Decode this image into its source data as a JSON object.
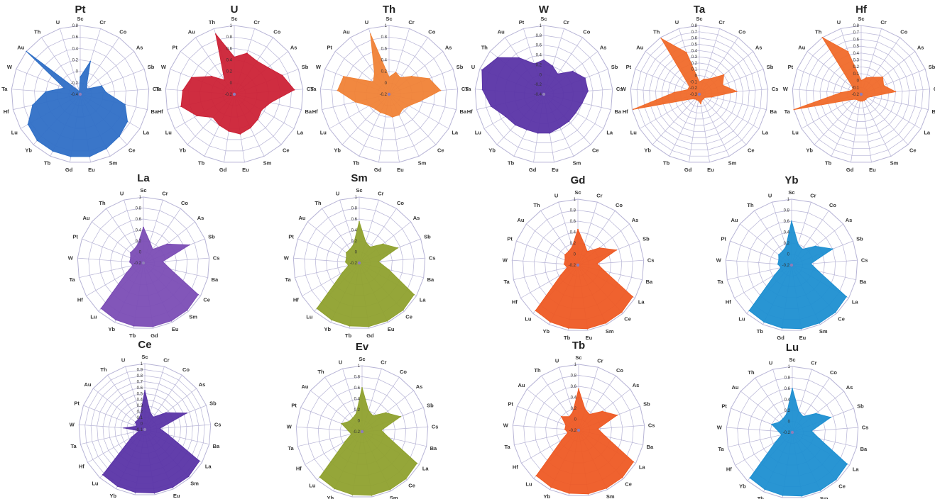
{
  "figure": {
    "title": ""
  },
  "chart_data": [
    {
      "type": "radar",
      "title": "Pt",
      "color": "#2f6fc6",
      "axis_ticks": [
        "0.8",
        "0.6",
        "0.4",
        "0.2",
        "0",
        "-0.2",
        "-0.4"
      ],
      "rmin": -0.4,
      "rmax": 0.8,
      "categories": [
        "Sc",
        "Cr",
        "Co",
        "As",
        "Sb",
        "Cs",
        "Ba",
        "La",
        "Ce",
        "Sm",
        "Eu",
        "Gd",
        "Tb",
        "Yb",
        "Lu",
        "Hf",
        "Ta",
        "W",
        "Au",
        "Th",
        "U"
      ],
      "values": [
        -0.1,
        0.2,
        -0.2,
        -0.25,
        0.0,
        0.05,
        0.4,
        0.55,
        0.6,
        0.65,
        0.7,
        0.7,
        0.7,
        0.7,
        0.65,
        0.45,
        0.2,
        -0.1,
        0.8,
        -0.3,
        -0.35
      ]
    },
    {
      "type": "radar",
      "title": "U",
      "color": "#cc2236",
      "axis_ticks": [
        "1",
        "0.8",
        "0.6",
        "0.4",
        "0.2",
        "0",
        "-0.2"
      ],
      "rmin": -0.2,
      "rmax": 1,
      "categories": [
        "Sc",
        "Cr",
        "Co",
        "As",
        "Sb",
        "Cs",
        "Ba",
        "La",
        "Ce",
        "Sm",
        "Eu",
        "Gd",
        "Tb",
        "Yb",
        "Lu",
        "Hf",
        "Ta",
        "W",
        "Pt",
        "Au",
        "Th"
      ],
      "values": [
        0.45,
        0.55,
        0.5,
        0.55,
        0.7,
        0.85,
        0.45,
        0.35,
        0.4,
        0.45,
        0.5,
        0.45,
        0.4,
        0.35,
        0.55,
        0.75,
        0.7,
        0.6,
        0.3,
        0.1,
        0.9
      ]
    },
    {
      "type": "radar",
      "title": "Th",
      "color": "#f08236",
      "axis_ticks": [
        "1",
        "0.8",
        "0.6",
        "0.4",
        "0.2",
        "0",
        "-0.2"
      ],
      "rmin": -0.2,
      "rmax": 1,
      "categories": [
        "Sc",
        "Cr",
        "Co",
        "As",
        "Sb",
        "Cs",
        "Ba",
        "La",
        "Ce",
        "Sm",
        "Eu",
        "Gd",
        "Tb",
        "Yb",
        "Lu",
        "Hf",
        "Ta",
        "W",
        "Pt",
        "Au",
        "U"
      ],
      "values": [
        0.1,
        0.2,
        0.15,
        0.3,
        0.55,
        0.7,
        0.35,
        0.2,
        0.15,
        0.2,
        0.2,
        0.15,
        0.15,
        0.15,
        0.2,
        0.4,
        0.7,
        0.65,
        0.15,
        0.25,
        0.9
      ]
    },
    {
      "type": "radar",
      "title": "W",
      "color": "#5a34a6",
      "axis_ticks": [
        "1",
        "0.8",
        "0.6",
        "0.4",
        "0.2",
        "0",
        "-0.2",
        "-0.4"
      ],
      "rmin": -0.4,
      "rmax": 1,
      "categories": [
        "Sc",
        "Cr",
        "Co",
        "As",
        "Sb",
        "Cs",
        "Ba",
        "La",
        "Ce",
        "Sm",
        "Eu",
        "Gd",
        "Tb",
        "Yb",
        "Lu",
        "Hf",
        "Ta",
        "U",
        "Th",
        "Au",
        "Pt"
      ],
      "values": [
        0.3,
        0.2,
        0.1,
        0.35,
        0.5,
        0.5,
        0.4,
        0.35,
        0.35,
        0.35,
        0.4,
        0.4,
        0.4,
        0.45,
        0.5,
        0.7,
        0.85,
        0.95,
        0.8,
        0.5,
        0.25
      ]
    },
    {
      "type": "radar",
      "title": "Ta",
      "color": "#f06a2a",
      "axis_ticks": [
        "0.8",
        "0.7",
        "0.6",
        "0.5",
        "0.4",
        "0.3",
        "0.2",
        "0.1",
        "0",
        "-0.1",
        "-0.2",
        "-0.3"
      ],
      "rmin": -0.3,
      "rmax": 0.8,
      "categories": [
        "Sc",
        "Cr",
        "Co",
        "As",
        "Sb",
        "Cs",
        "Ba",
        "La",
        "Ce",
        "Sm",
        "Eu",
        "Gd",
        "Tb",
        "Yb",
        "Lu",
        "Hf",
        "W",
        "Pt",
        "Au",
        "Th",
        "U"
      ],
      "values": [
        -0.1,
        -0.05,
        0.0,
        0.2,
        0.1,
        0.3,
        -0.1,
        -0.2,
        -0.2,
        -0.2,
        -0.15,
        -0.2,
        -0.2,
        -0.2,
        -0.15,
        0.78,
        0.1,
        -0.1,
        -0.1,
        0.78,
        0.4
      ]
    },
    {
      "type": "radar",
      "title": "Hf",
      "color": "#f06a2a",
      "axis_ticks": [
        "0.8",
        "0.7",
        "0.6",
        "0.5",
        "0.4",
        "0.3",
        "0.2",
        "0.1",
        "0",
        "-0.1",
        "-0.2"
      ],
      "rmin": -0.2,
      "rmax": 0.8,
      "categories": [
        "Sc",
        "Cr",
        "Co",
        "As",
        "Sb",
        "Cs",
        "Ba",
        "La",
        "Ce",
        "Sm",
        "Eu",
        "Gd",
        "Tb",
        "Yb",
        "Lu",
        "Ta",
        "W",
        "Pt",
        "Au",
        "Th",
        "U"
      ],
      "values": [
        0.0,
        0.05,
        0.1,
        0.2,
        0.15,
        0.3,
        -0.05,
        -0.1,
        -0.1,
        -0.1,
        -0.1,
        -0.1,
        -0.1,
        -0.1,
        -0.05,
        0.8,
        0.1,
        -0.05,
        -0.05,
        0.8,
        0.45
      ]
    },
    {
      "type": "radar",
      "title": "La",
      "color": "#7b4db5",
      "axis_ticks": [
        "1",
        "0.8",
        "0.6",
        "0.4",
        "0.2",
        "0",
        "-0.2"
      ],
      "rmin": -0.2,
      "rmax": 1,
      "categories": [
        "Sc",
        "Cr",
        "Co",
        "As",
        "Sb",
        "Cs",
        "Ba",
        "Ce",
        "Sm",
        "Eu",
        "Gd",
        "Tb",
        "Yb",
        "Lu",
        "Hf",
        "Ta",
        "W",
        "Pt",
        "Au",
        "Th",
        "U"
      ],
      "values": [
        0.45,
        0.2,
        0.1,
        0.35,
        0.7,
        0.15,
        0.3,
        0.95,
        0.97,
        0.97,
        0.97,
        0.96,
        0.95,
        0.93,
        0.15,
        0.0,
        0.05,
        0.05,
        0.1,
        0.1,
        0.15
      ]
    },
    {
      "type": "radar",
      "title": "Sm",
      "color": "#8fa12e",
      "axis_ticks": [
        "1",
        "0.8",
        "0.6",
        "0.4",
        "0.2",
        "0",
        "-0.2"
      ],
      "rmin": -0.2,
      "rmax": 1,
      "categories": [
        "Sc",
        "Cr",
        "Co",
        "As",
        "Sb",
        "Cs",
        "Ba",
        "La",
        "Ce",
        "Eu",
        "Gd",
        "Tb",
        "Yb",
        "Lu",
        "Hf",
        "Ta",
        "W",
        "Pt",
        "Au",
        "Th",
        "U"
      ],
      "values": [
        0.55,
        0.2,
        0.15,
        0.35,
        0.55,
        0.15,
        0.35,
        0.95,
        0.97,
        0.97,
        0.97,
        0.96,
        0.95,
        0.93,
        0.15,
        0.0,
        0.05,
        0.05,
        0.1,
        0.1,
        0.15
      ]
    },
    {
      "type": "radar",
      "title": "Gd",
      "color": "#ee5a24",
      "axis_ticks": [
        "1",
        "0.8",
        "0.6",
        "0.4",
        "0.2",
        "0",
        "-0.2"
      ],
      "rmin": -0.2,
      "rmax": 1,
      "categories": [
        "Sc",
        "Cr",
        "Co",
        "As",
        "Sb",
        "Cs",
        "Ba",
        "La",
        "Ce",
        "Sm",
        "Eu",
        "Tb",
        "Yb",
        "Lu",
        "Hf",
        "Ta",
        "W",
        "Pt",
        "Au",
        "Th",
        "U"
      ],
      "values": [
        0.45,
        0.2,
        0.1,
        0.3,
        0.55,
        0.15,
        0.3,
        0.95,
        0.97,
        0.97,
        0.97,
        0.96,
        0.95,
        0.93,
        0.15,
        0.0,
        0.05,
        0.05,
        0.1,
        0.1,
        0.15
      ]
    },
    {
      "type": "radar",
      "title": "Yb",
      "color": "#1d8fd1",
      "axis_ticks": [
        "1",
        "0.8",
        "0.6",
        "0.4",
        "0.2",
        "0",
        "-0.2"
      ],
      "rmin": -0.2,
      "rmax": 1,
      "categories": [
        "Sc",
        "Cr",
        "Co",
        "As",
        "Sb",
        "Cs",
        "Ba",
        "La",
        "Ce",
        "Sm",
        "Eu",
        "Gd",
        "Tb",
        "Lu",
        "Hf",
        "Ta",
        "W",
        "Pt",
        "Au",
        "Th",
        "U"
      ],
      "values": [
        0.6,
        0.2,
        0.15,
        0.35,
        0.6,
        0.15,
        0.3,
        0.95,
        0.97,
        0.97,
        0.97,
        0.96,
        0.95,
        0.93,
        0.15,
        0.0,
        0.05,
        0.05,
        0.1,
        0.1,
        0.15
      ]
    },
    {
      "type": "radar",
      "title": "Ce",
      "color": "#5a34a6",
      "axis_ticks": [
        "1",
        "0.9",
        "0.8",
        "0.7",
        "0.6",
        "0.5",
        "0.4",
        "0.3",
        "0.2",
        "0.1",
        "0",
        "-0.1"
      ],
      "rmin": -0.1,
      "rmax": 1,
      "categories": [
        "Sc",
        "Cr",
        "Co",
        "As",
        "Sb",
        "Cs",
        "Ba",
        "La",
        "Sm",
        "Eu",
        "Gd",
        "Tb",
        "Yb",
        "Lu",
        "Hf",
        "Ta",
        "W",
        "Pt",
        "Au",
        "Th",
        "U"
      ],
      "values": [
        0.55,
        0.2,
        0.15,
        0.35,
        0.65,
        0.15,
        0.3,
        0.95,
        0.97,
        0.97,
        0.97,
        0.96,
        0.95,
        0.93,
        0.15,
        0.0,
        0.25,
        0.05,
        0.1,
        0.1,
        0.15
      ]
    },
    {
      "type": "radar",
      "title": "Ev",
      "color": "#8fa12e",
      "axis_ticks": [
        "1",
        "0.8",
        "0.6",
        "0.4",
        "0.2",
        "0",
        "-0.2"
      ],
      "rmin": -0.2,
      "rmax": 1,
      "categories": [
        "Sc",
        "Cr",
        "Co",
        "As",
        "Sb",
        "Cs",
        "Ba",
        "La",
        "Ce",
        "Sm",
        "Gd",
        "Tb",
        "Yb",
        "Lu",
        "Hf",
        "Ta",
        "W",
        "Pt",
        "Au",
        "Th",
        "U"
      ],
      "values": [
        0.6,
        0.2,
        0.15,
        0.35,
        0.55,
        0.15,
        0.3,
        0.95,
        0.97,
        0.97,
        0.97,
        0.96,
        0.95,
        0.93,
        0.15,
        0.0,
        0.05,
        0.2,
        0.1,
        0.1,
        0.15
      ]
    },
    {
      "type": "radar",
      "title": "Tb",
      "color": "#ee5a24",
      "axis_ticks": [
        "1",
        "0.8",
        "0.6",
        "0.4",
        "0.2",
        "0",
        "-0.2"
      ],
      "rmin": -0.2,
      "rmax": 1,
      "categories": [
        "Sc",
        "Cr",
        "Co",
        "As",
        "Sb",
        "Cs",
        "Ba",
        "La",
        "Ce",
        "Sm",
        "Eu",
        "Gd",
        "Yb",
        "Lu",
        "Hf",
        "Ta",
        "W",
        "Pt",
        "Au",
        "Th",
        "U"
      ],
      "values": [
        0.55,
        0.2,
        0.15,
        0.35,
        0.55,
        0.15,
        0.3,
        0.95,
        0.97,
        0.97,
        0.97,
        0.96,
        0.95,
        0.93,
        0.15,
        0.0,
        0.05,
        0.05,
        0.2,
        0.1,
        0.15
      ]
    },
    {
      "type": "radar",
      "title": "Lu",
      "color": "#1d8fd1",
      "axis_ticks": [
        "1",
        "0.8",
        "0.6",
        "0.4",
        "0.2",
        "0",
        "-0.2"
      ],
      "rmin": -0.2,
      "rmax": 1,
      "categories": [
        "Sc",
        "Cr",
        "Co",
        "As",
        "Sb",
        "Cs",
        "Ba",
        "La",
        "Ce",
        "Sm",
        "Eu",
        "Gd",
        "Tb",
        "Yb",
        "Hf",
        "Ta",
        "W",
        "Pt",
        "Au",
        "Th",
        "U"
      ],
      "values": [
        0.6,
        0.2,
        0.15,
        0.35,
        0.55,
        0.15,
        0.3,
        0.95,
        0.97,
        0.97,
        0.97,
        0.96,
        0.95,
        0.93,
        0.15,
        0.0,
        0.05,
        0.2,
        0.1,
        0.1,
        0.15
      ]
    }
  ]
}
